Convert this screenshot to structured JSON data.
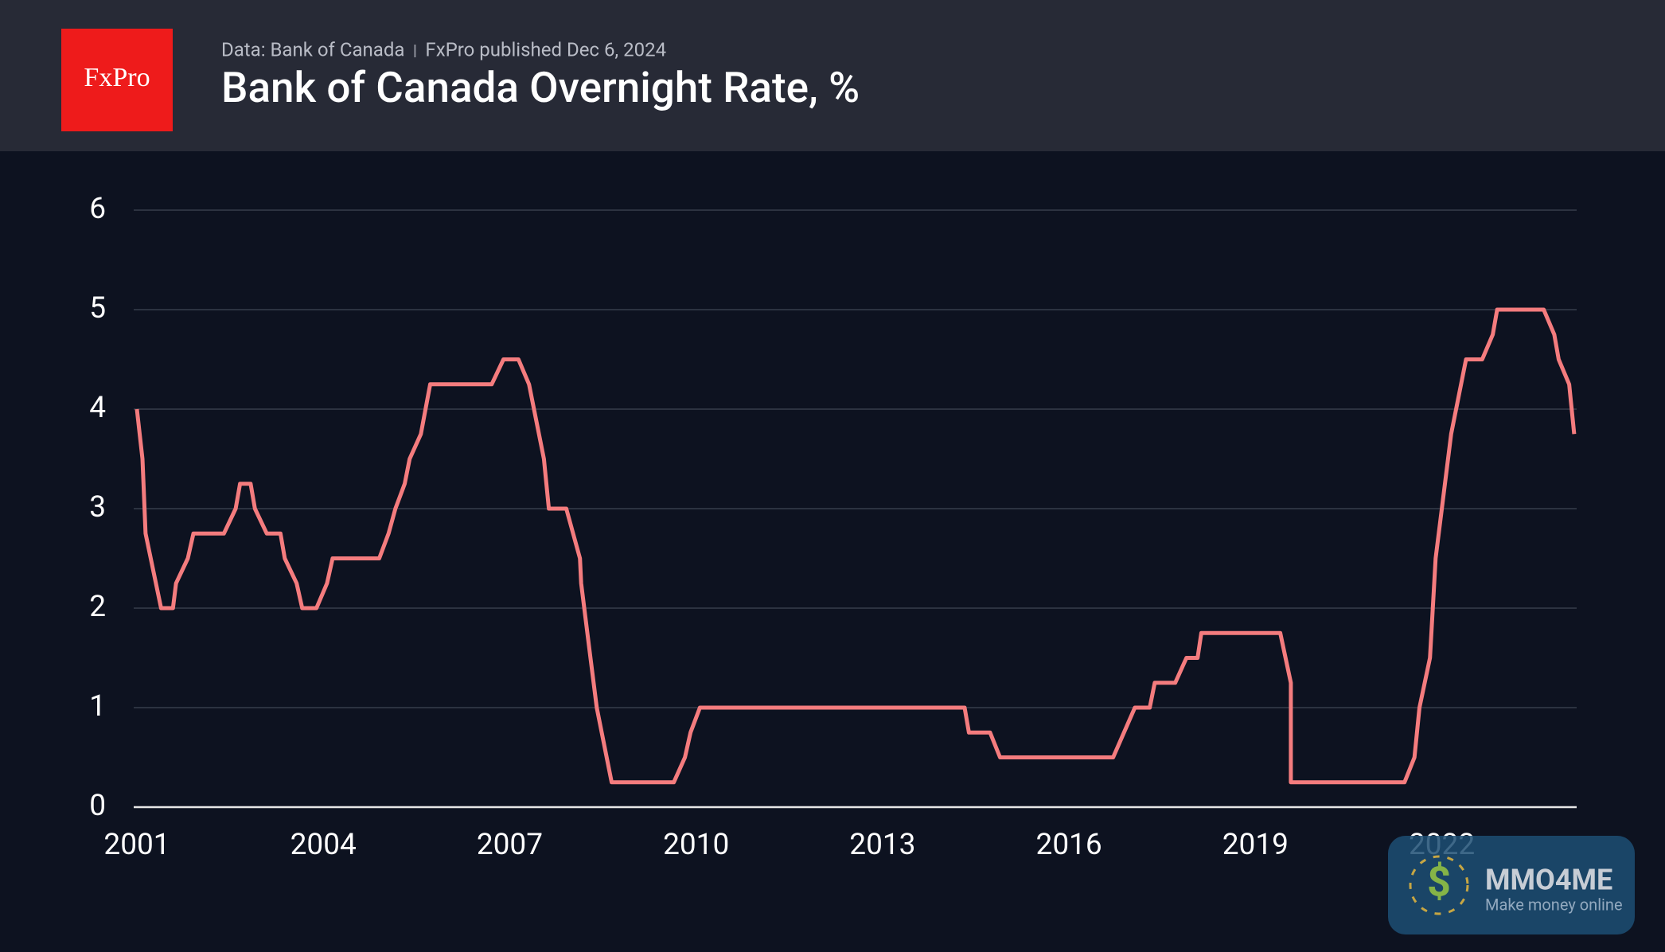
{
  "chart_data": {
    "type": "line",
    "title": "Bank of Canada Overnight Rate, %",
    "source": "Data: Bank of Canada",
    "subtitle": "FxPro published Dec 6, 2024",
    "logo": "FxPro",
    "x": [
      2001.0,
      2001.09,
      2001.14,
      2001.39,
      2001.58,
      2001.63,
      2001.82,
      2001.91,
      2002.4,
      2002.59,
      2002.66,
      2002.83,
      2002.9,
      2003.09,
      2003.31,
      2003.38,
      2003.57,
      2003.66,
      2003.89,
      2004.06,
      2004.15,
      2004.9,
      2005.05,
      2005.16,
      2005.31,
      2005.39,
      2005.57,
      2005.72,
      2006.71,
      2006.9,
      2007.14,
      2007.31,
      2007.55,
      2007.63,
      2007.91,
      2008.13,
      2008.15,
      2008.3,
      2008.4,
      2008.64,
      2009.64,
      2009.82,
      2009.91,
      2010.06,
      2014.32,
      2014.39,
      2014.73,
      2014.89,
      2016.71,
      2017.06,
      2017.3,
      2017.38,
      2017.71,
      2017.89,
      2018.07,
      2018.13,
      2019.4,
      2019.57,
      2019.57,
      2021.4,
      2021.56,
      2021.64,
      2021.81,
      2021.9,
      2022.05,
      2022.15,
      2022.39,
      2022.65,
      2022.82,
      2022.89,
      2023.64,
      2023.81,
      2023.88,
      2024.05,
      2024.13
    ],
    "values": [
      4.0,
      3.5,
      2.75,
      2.0,
      2.0,
      2.25,
      2.5,
      2.75,
      2.75,
      3.0,
      3.25,
      3.25,
      3.0,
      2.75,
      2.75,
      2.5,
      2.25,
      2.0,
      2.0,
      2.25,
      2.5,
      2.5,
      2.75,
      3.0,
      3.25,
      3.5,
      3.75,
      4.25,
      4.25,
      4.5,
      4.5,
      4.25,
      3.5,
      3.0,
      3.0,
      2.5,
      2.25,
      1.5,
      1.0,
      0.25,
      0.25,
      0.5,
      0.75,
      1.0,
      1.0,
      0.75,
      0.75,
      0.5,
      0.5,
      1.0,
      1.0,
      1.25,
      1.25,
      1.5,
      1.5,
      1.75,
      1.75,
      1.25,
      0.25,
      0.25,
      0.5,
      1.0,
      1.5,
      2.5,
      3.25,
      3.75,
      4.5,
      4.5,
      4.75,
      5.0,
      5.0,
      4.75,
      4.5,
      4.25,
      3.75
    ],
    "color": "#f47c7e",
    "xlim": [
      2001,
      2024.17
    ],
    "xticks": [
      2001,
      2004,
      2007,
      2010,
      2013,
      2016,
      2019,
      2022
    ],
    "ylim": [
      0,
      6
    ],
    "yticks": [
      0,
      1,
      2,
      3,
      4,
      5,
      6
    ],
    "grid": true,
    "watermark": {
      "name": "MMO4ME",
      "tagline": "Make money online"
    }
  }
}
